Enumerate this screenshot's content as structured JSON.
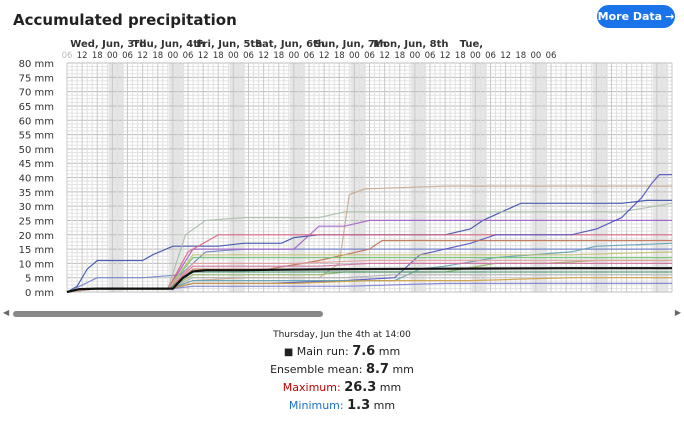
{
  "title": "Accumulated precipitation",
  "more_button": {
    "label": "More Data",
    "icon": "arrow-right-icon",
    "color": "#1a73e8"
  },
  "tooltip": {
    "time": "Thursday, Jun the 4th at 14:00",
    "main_run_label": "Main run:",
    "main_run_value": "7.6",
    "ensemble_mean_label": "Ensemble mean:",
    "ensemble_mean_value": "8.7",
    "maximum_label": "Maximum:",
    "maximum_value": "26.3",
    "minimum_label": "Minimum:",
    "minimum_value": "1.3",
    "unit": "mm",
    "maximum_color": "#c00000",
    "minimum_color": "#1a73c8"
  },
  "chart_data": {
    "type": "line",
    "title": "Accumulated precipitation",
    "ylim": [
      0,
      80
    ],
    "y_unit": "mm",
    "y_ticks": [
      "0 mm",
      "5 mm",
      "10 mm",
      "15 mm",
      "20 mm",
      "25 mm",
      "30 mm",
      "35 mm",
      "40 mm",
      "45 mm",
      "50 mm",
      "55 mm",
      "60 mm",
      "65 mm",
      "70 mm",
      "75 mm",
      "80 mm"
    ],
    "day_labels": [
      "Wed, Jun, 3rd",
      "Thu, Jun, 4th",
      "Fri, Jun, 5th",
      "Sat, Jun, 6th",
      "Sun, Jun, 7th",
      "Mon, Jun, 8th",
      "Tue,"
    ],
    "hour_labels": [
      "06",
      "12",
      "18",
      "00",
      "06",
      "12",
      "18",
      "00",
      "06",
      "12",
      "18",
      "00",
      "06",
      "12",
      "18",
      "00",
      "06",
      "12",
      "18",
      "00",
      "06",
      "12",
      "18",
      "00",
      "06",
      "12",
      "18",
      "00",
      "06",
      "12",
      "18",
      "00",
      "06"
    ],
    "x_hours": [
      0,
      240
    ],
    "grid": true,
    "main_run": {
      "name": "Main run",
      "color": "#111111",
      "points": [
        [
          0,
          0
        ],
        [
          5,
          1
        ],
        [
          12,
          1.2
        ],
        [
          42,
          1.2
        ],
        [
          46,
          5
        ],
        [
          50,
          7.2
        ],
        [
          55,
          7.6
        ],
        [
          70,
          7.6
        ],
        [
          85,
          7.8
        ],
        [
          110,
          8
        ],
        [
          140,
          8.1
        ],
        [
          170,
          8.2
        ],
        [
          200,
          8.3
        ],
        [
          240,
          8.3
        ]
      ]
    },
    "members": [
      {
        "color": "#3a4fa8",
        "points": [
          [
            0,
            0
          ],
          [
            4,
            2
          ],
          [
            8,
            8
          ],
          [
            12,
            11
          ],
          [
            30,
            11
          ],
          [
            34,
            13
          ],
          [
            42,
            16
          ],
          [
            50,
            16
          ],
          [
            60,
            16
          ],
          [
            70,
            17
          ],
          [
            85,
            17
          ],
          [
            90,
            19
          ],
          [
            100,
            20
          ],
          [
            150,
            20
          ],
          [
            160,
            22
          ],
          [
            165,
            25
          ],
          [
            170,
            27
          ],
          [
            180,
            31
          ],
          [
            195,
            31
          ],
          [
            210,
            31
          ],
          [
            220,
            31
          ],
          [
            230,
            32
          ],
          [
            240,
            32
          ]
        ]
      },
      {
        "color": "#6e7fc8",
        "points": [
          [
            0,
            0
          ],
          [
            5,
            2
          ],
          [
            12,
            5
          ],
          [
            30,
            5
          ],
          [
            45,
            6
          ],
          [
            55,
            14
          ],
          [
            70,
            15
          ],
          [
            90,
            15
          ],
          [
            110,
            15
          ],
          [
            130,
            15
          ],
          [
            160,
            15
          ],
          [
            200,
            15
          ],
          [
            240,
            15
          ]
        ]
      },
      {
        "color": "#a8bfa8",
        "points": [
          [
            0,
            0
          ],
          [
            10,
            1
          ],
          [
            40,
            1
          ],
          [
            47,
            20
          ],
          [
            55,
            25
          ],
          [
            70,
            26
          ],
          [
            100,
            26
          ],
          [
            110,
            28
          ],
          [
            130,
            28
          ],
          [
            160,
            28
          ],
          [
            200,
            28
          ],
          [
            220,
            28
          ],
          [
            240,
            31
          ]
        ]
      },
      {
        "color": "#c8a890",
        "points": [
          [
            0,
            0
          ],
          [
            10,
            1
          ],
          [
            40,
            1
          ],
          [
            50,
            4
          ],
          [
            70,
            5
          ],
          [
            100,
            5
          ],
          [
            108,
            10
          ],
          [
            112,
            34
          ],
          [
            118,
            36
          ],
          [
            150,
            37
          ],
          [
            200,
            37
          ],
          [
            240,
            37
          ]
        ]
      },
      {
        "color": "#a060c8",
        "points": [
          [
            0,
            0
          ],
          [
            10,
            1
          ],
          [
            40,
            1
          ],
          [
            50,
            15
          ],
          [
            70,
            15
          ],
          [
            90,
            15
          ],
          [
            100,
            23
          ],
          [
            110,
            23
          ],
          [
            120,
            25
          ],
          [
            150,
            25
          ],
          [
            200,
            25
          ],
          [
            240,
            25
          ]
        ]
      },
      {
        "color": "#e06080",
        "points": [
          [
            0,
            0
          ],
          [
            10,
            1
          ],
          [
            40,
            1
          ],
          [
            48,
            14
          ],
          [
            60,
            20
          ],
          [
            90,
            20
          ],
          [
            110,
            20
          ],
          [
            130,
            20
          ],
          [
            160,
            20
          ],
          [
            200,
            20
          ],
          [
            240,
            20
          ]
        ]
      },
      {
        "color": "#5050c0",
        "points": [
          [
            0,
            0
          ],
          [
            10,
            1
          ],
          [
            40,
            1
          ],
          [
            50,
            3
          ],
          [
            80,
            3
          ],
          [
            110,
            4
          ],
          [
            130,
            5
          ],
          [
            140,
            13
          ],
          [
            150,
            15
          ],
          [
            160,
            17
          ],
          [
            170,
            20
          ],
          [
            180,
            20
          ],
          [
            200,
            20
          ],
          [
            210,
            22
          ],
          [
            220,
            26
          ],
          [
            228,
            33
          ],
          [
            232,
            38
          ],
          [
            235,
            41
          ],
          [
            240,
            41
          ]
        ]
      },
      {
        "color": "#c07050",
        "points": [
          [
            0,
            0
          ],
          [
            10,
            1
          ],
          [
            40,
            1
          ],
          [
            50,
            8
          ],
          [
            80,
            8
          ],
          [
            100,
            11
          ],
          [
            110,
            13
          ],
          [
            120,
            15
          ],
          [
            125,
            18
          ],
          [
            150,
            18
          ],
          [
            180,
            18
          ],
          [
            200,
            18
          ],
          [
            240,
            18
          ]
        ]
      },
      {
        "color": "#60a0b0",
        "points": [
          [
            0,
            0
          ],
          [
            10,
            1
          ],
          [
            40,
            1
          ],
          [
            50,
            4
          ],
          [
            80,
            4
          ],
          [
            110,
            4
          ],
          [
            130,
            4
          ],
          [
            140,
            8
          ],
          [
            150,
            9
          ],
          [
            170,
            12
          ],
          [
            200,
            14
          ],
          [
            210,
            16
          ],
          [
            240,
            17
          ]
        ]
      },
      {
        "color": "#90b060",
        "points": [
          [
            0,
            0
          ],
          [
            10,
            1
          ],
          [
            40,
            1
          ],
          [
            50,
            6
          ],
          [
            70,
            6
          ],
          [
            100,
            6
          ],
          [
            110,
            7
          ],
          [
            150,
            7
          ],
          [
            170,
            10
          ],
          [
            190,
            10
          ],
          [
            210,
            11
          ],
          [
            240,
            11
          ]
        ]
      },
      {
        "color": "#d070a0",
        "points": [
          [
            0,
            0
          ],
          [
            10,
            1
          ],
          [
            40,
            1
          ],
          [
            50,
            9
          ],
          [
            70,
            9
          ],
          [
            100,
            9
          ],
          [
            120,
            10
          ],
          [
            160,
            10
          ],
          [
            200,
            10
          ],
          [
            240,
            10
          ]
        ]
      },
      {
        "color": "#70c070",
        "points": [
          [
            0,
            0
          ],
          [
            10,
            1
          ],
          [
            40,
            1
          ],
          [
            50,
            12
          ],
          [
            70,
            12
          ],
          [
            100,
            12
          ],
          [
            110,
            12
          ],
          [
            150,
            12
          ],
          [
            200,
            12
          ],
          [
            240,
            12
          ]
        ]
      },
      {
        "color": "#b0b0b0",
        "points": [
          [
            0,
            0
          ],
          [
            10,
            1
          ],
          [
            40,
            1
          ],
          [
            50,
            5
          ],
          [
            80,
            5
          ],
          [
            110,
            5
          ],
          [
            130,
            6
          ],
          [
            160,
            6
          ],
          [
            200,
            6
          ],
          [
            240,
            6
          ]
        ]
      },
      {
        "color": "#d0a040",
        "points": [
          [
            0,
            0
          ],
          [
            10,
            1
          ],
          [
            40,
            1
          ],
          [
            50,
            3
          ],
          [
            90,
            3
          ],
          [
            120,
            4
          ],
          [
            160,
            4
          ],
          [
            200,
            5
          ],
          [
            240,
            5
          ]
        ]
      },
      {
        "color": "#8080d0",
        "points": [
          [
            0,
            0
          ],
          [
            10,
            1
          ],
          [
            40,
            1
          ],
          [
            50,
            2
          ],
          [
            80,
            2
          ],
          [
            110,
            2
          ],
          [
            150,
            3
          ],
          [
            200,
            3
          ],
          [
            240,
            3
          ]
        ]
      },
      {
        "color": "#4a9a70",
        "points": [
          [
            0,
            0
          ],
          [
            10,
            1
          ],
          [
            40,
            1
          ],
          [
            50,
            7
          ],
          [
            80,
            7
          ],
          [
            120,
            7
          ],
          [
            160,
            7
          ],
          [
            200,
            7
          ],
          [
            240,
            7
          ]
        ]
      },
      {
        "color": "#c0c070",
        "points": [
          [
            0,
            0
          ],
          [
            10,
            1
          ],
          [
            40,
            1
          ],
          [
            50,
            13
          ],
          [
            90,
            13
          ],
          [
            130,
            13
          ],
          [
            160,
            13
          ],
          [
            200,
            13
          ],
          [
            240,
            14
          ]
        ]
      },
      {
        "color": "#e0a0a0",
        "points": [
          [
            0,
            0
          ],
          [
            10,
            1
          ],
          [
            40,
            1
          ],
          [
            50,
            10
          ],
          [
            90,
            10
          ],
          [
            120,
            11
          ],
          [
            160,
            11
          ],
          [
            200,
            11
          ],
          [
            240,
            11
          ]
        ]
      }
    ]
  }
}
